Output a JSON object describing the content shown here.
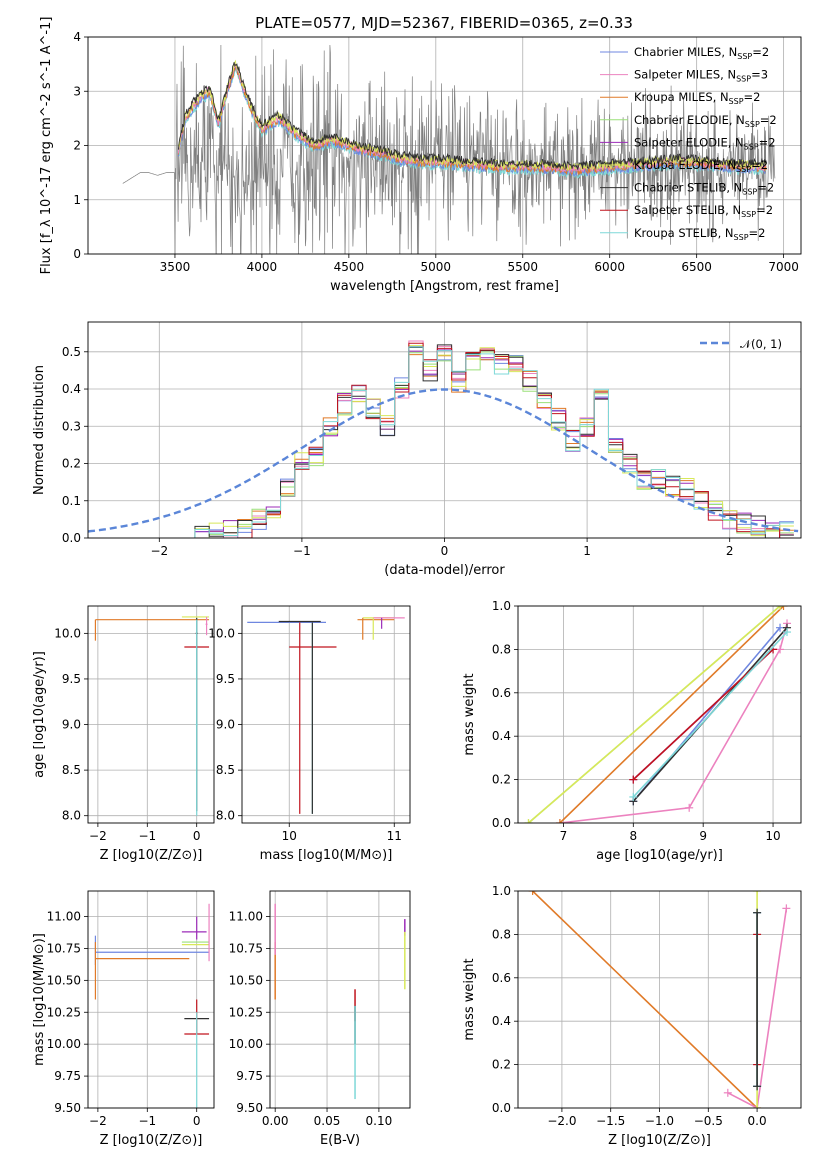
{
  "figure": {
    "title": "PLATE=0577, MJD=52367, FIBERID=0365, z=0.33"
  },
  "colors": {
    "Chabrier MILES": "#6f87e0",
    "Salpeter MILES": "#ec82bf",
    "Kroupa MILES": "#e07a28",
    "Chabrier ELODIE": "#9be07a",
    "Salpeter ELODIE": "#9c2cb8",
    "Kroupa ELODIE": "#d8e85a",
    "Chabrier STELIB": "#303030",
    "Salpeter STELIB": "#c0141e",
    "Kroupa STELIB": "#7ed8d8",
    "data": "#7f7f7f",
    "normal": "#5b86d8"
  },
  "chart_data": [
    {
      "id": "spectrum",
      "type": "line",
      "title": "PLATE=0577, MJD=52367, FIBERID=0365, z=0.33",
      "xlabel": "wavelength [Angstrom, rest frame]",
      "ylabel": "Flux [f_λ 10^-17 erg cm^-2 s^-1 A^-1]",
      "xlim": [
        3000,
        7100
      ],
      "ylim": [
        0,
        4
      ],
      "xticks": [
        3500,
        4000,
        4500,
        5000,
        5500,
        6000,
        6500,
        7000
      ],
      "yticks": [
        0,
        1,
        2,
        3,
        4
      ],
      "legend_position": "top-right",
      "legend": [
        {
          "name": "Chabrier MILES, N_SSP=2",
          "main": "Chabrier MILES, N",
          "sub": "SSP",
          "tail": "=2"
        },
        {
          "name": "Salpeter MILES, N_SSP=3",
          "main": "Salpeter MILES, N",
          "sub": "SSP",
          "tail": "=3"
        },
        {
          "name": "Kroupa MILES, N_SSP=2",
          "main": "Kroupa MILES, N",
          "sub": "SSP",
          "tail": "=2"
        },
        {
          "name": "Chabrier ELODIE, N_SSP=2",
          "main": "Chabrier ELODIE, N",
          "sub": "SSP",
          "tail": "=2"
        },
        {
          "name": "Salpeter ELODIE, N_SSP=2",
          "main": "Salpeter ELODIE, N",
          "sub": "SSP",
          "tail": "=2"
        },
        {
          "name": "Kroupa ELODIE, N_SSP=2",
          "main": "Kroupa ELODIE, N",
          "sub": "SSP",
          "tail": "=2"
        },
        {
          "name": "Chabrier STELIB, N_SSP=2",
          "main": "Chabrier STELIB, N",
          "sub": "SSP",
          "tail": "=2"
        },
        {
          "name": "Salpeter STELIB, N_SSP=2",
          "main": "Salpeter STELIB, N",
          "sub": "SSP",
          "tail": "=2"
        },
        {
          "name": "Kroupa STELIB, N_SSP=2",
          "main": "Kroupa STELIB, N",
          "sub": "SSP",
          "tail": "=2"
        }
      ],
      "data_spectrum": {
        "x": [
          3200,
          3250,
          3300,
          3350,
          3400,
          3450,
          3500,
          3600,
          3700,
          3800,
          3900,
          4000,
          4200,
          4400,
          4600,
          4800,
          5000,
          5200,
          5400,
          5600,
          5800,
          6000,
          6200,
          6400,
          6600,
          6800,
          6950
        ],
        "y": [
          1.3,
          1.4,
          1.5,
          1.5,
          1.45,
          1.5,
          1.5,
          1.6,
          1.7,
          1.5,
          1.3,
          1.6,
          1.8,
          1.8,
          1.75,
          1.7,
          1.75,
          1.7,
          1.6,
          1.55,
          1.6,
          1.6,
          1.6,
          1.6,
          1.65,
          1.6,
          1.5
        ],
        "noisy_from": 3500,
        "noise_range": [
          0,
          4
        ]
      },
      "model_spectrum": {
        "x": [
          3520,
          3560,
          3600,
          3650,
          3700,
          3750,
          3800,
          3850,
          3900,
          3950,
          4000,
          4100,
          4200,
          4300,
          4400,
          4500,
          4600,
          4700,
          4800,
          4900,
          5000,
          5200,
          5400,
          5600,
          5800,
          6000,
          6200,
          6400,
          6600,
          6800,
          6900
        ],
        "y": [
          1.9,
          2.5,
          2.7,
          2.9,
          3.0,
          2.4,
          3.0,
          3.5,
          3.0,
          2.6,
          2.3,
          2.5,
          2.2,
          2.0,
          2.1,
          2.0,
          1.9,
          1.85,
          1.75,
          1.7,
          1.7,
          1.65,
          1.6,
          1.6,
          1.55,
          1.6,
          1.65,
          1.7,
          1.65,
          1.6,
          1.6
        ]
      }
    },
    {
      "id": "residuals",
      "type": "line",
      "xlabel": "(data-model)/error",
      "ylabel": "Normed distribution",
      "xlim": [
        -2.5,
        2.5
      ],
      "ylim": [
        0,
        0.58
      ],
      "xticks": [
        -2,
        -1,
        0,
        1,
        2
      ],
      "yticks": [
        0.0,
        0.1,
        0.2,
        0.3,
        0.4,
        0.5
      ],
      "legend_position": "top-right",
      "normal_label": "𝒩(0, 1)",
      "bin_edges": [
        -1.75,
        -1.65,
        -1.55,
        -1.45,
        -1.35,
        -1.25,
        -1.15,
        -1.05,
        -0.95,
        -0.85,
        -0.75,
        -0.65,
        -0.55,
        -0.45,
        -0.35,
        -0.25,
        -0.15,
        -0.05,
        0.05,
        0.15,
        0.25,
        0.35,
        0.45,
        0.55,
        0.65,
        0.75,
        0.85,
        0.95,
        1.05,
        1.15,
        1.25,
        1.35,
        1.45,
        1.55,
        1.65,
        1.75,
        1.85,
        1.95,
        2.05,
        2.15,
        2.25,
        2.35,
        2.45
      ],
      "hist_values": [
        0.005,
        0.01,
        0.02,
        0.03,
        0.05,
        0.08,
        0.14,
        0.2,
        0.22,
        0.3,
        0.36,
        0.39,
        0.35,
        0.3,
        0.4,
        0.5,
        0.45,
        0.5,
        0.42,
        0.48,
        0.5,
        0.47,
        0.47,
        0.42,
        0.36,
        0.32,
        0.26,
        0.3,
        0.37,
        0.25,
        0.2,
        0.15,
        0.16,
        0.14,
        0.13,
        0.1,
        0.07,
        0.05,
        0.04,
        0.03,
        0.02,
        0.015
      ]
    },
    {
      "id": "age-vs-Z",
      "type": "scatter",
      "xlabel": "Z [log10(Z/Z⊙)]",
      "ylabel": "age [log10(age/yr)]",
      "xlim": [
        -2.2,
        0.35
      ],
      "ylim": [
        7.92,
        10.3
      ],
      "xticks": [
        -2,
        -1,
        0
      ],
      "yticks": [
        8.0,
        8.5,
        9.0,
        9.5,
        10.0
      ],
      "points": [
        {
          "series": "Kroupa MILES",
          "x": -2.0,
          "y": 10.15
        },
        {
          "series": "Chabrier MILES",
          "x": 0.0,
          "y": 10.15
        },
        {
          "series": "Kroupa ELODIE",
          "x": 0.0,
          "y": 10.18
        },
        {
          "series": "Salpeter MILES",
          "x": 0.2,
          "y": 10.15
        },
        {
          "series": "Salpeter STELIB",
          "x": 0.0,
          "y": 9.85
        },
        {
          "series": "Kroupa STELIB",
          "x": 0.0,
          "y": 8.05
        }
      ]
    },
    {
      "id": "age-vs-mass",
      "type": "scatter",
      "xlabel": "mass [log10(M/M⊙)]",
      "ylabel": "",
      "xlim": [
        9.55,
        11.15
      ],
      "ylim": [
        7.92,
        10.3
      ],
      "xticks": [
        10,
        11
      ],
      "yticks": [
        8.0,
        8.5,
        9.0,
        9.5,
        10.0
      ],
      "points": [
        {
          "series": "Chabrier MILES",
          "x": 10.2,
          "y": 10.12
        },
        {
          "series": "Salpeter STELIB",
          "x": 10.22,
          "y": 9.85
        },
        {
          "series": "Kroupa STELIB",
          "x": 10.22,
          "y": 8.05
        },
        {
          "series": "Kroupa ELODIE",
          "x": 10.7,
          "y": 10.17
        },
        {
          "series": "Salpeter MILES",
          "x": 10.85,
          "y": 10.17
        },
        {
          "series": "Kroupa MILES",
          "x": 10.7,
          "y": 10.15
        }
      ]
    },
    {
      "id": "mass-weight-vs-age",
      "type": "line",
      "xlabel": "age [log10(age/yr)]",
      "ylabel": "mass weight",
      "xlim": [
        6.35,
        10.4
      ],
      "ylim": [
        0,
        1.0
      ],
      "xticks": [
        7,
        8,
        9,
        10
      ],
      "yticks": [
        0.0,
        0.2,
        0.4,
        0.6,
        0.8,
        1.0
      ],
      "series": [
        {
          "name": "Chabrier MILES",
          "x": [
            8.0,
            10.1
          ],
          "y": [
            0.1,
            0.9
          ]
        },
        {
          "name": "Salpeter MILES",
          "x": [
            6.95,
            8.8,
            10.1,
            10.2
          ],
          "y": [
            0.0,
            0.07,
            0.8,
            0.92
          ]
        },
        {
          "name": "Kroupa MILES",
          "x": [
            6.95,
            10.15
          ],
          "y": [
            0.0,
            1.0
          ]
        },
        {
          "name": "Chabrier ELODIE",
          "x": [
            6.5,
            10.1
          ],
          "y": [
            0.0,
            1.0
          ]
        },
        {
          "name": "Salpeter ELODIE",
          "x": [
            8.0,
            10.0
          ],
          "y": [
            0.2,
            0.8
          ]
        },
        {
          "name": "Kroupa ELODIE",
          "x": [
            6.5,
            10.1
          ],
          "y": [
            0.0,
            1.0
          ]
        },
        {
          "name": "Chabrier STELIB",
          "x": [
            8.0,
            10.2
          ],
          "y": [
            0.1,
            0.9
          ]
        },
        {
          "name": "Salpeter STELIB",
          "x": [
            8.0,
            10.0
          ],
          "y": [
            0.2,
            0.8
          ]
        },
        {
          "name": "Kroupa STELIB",
          "x": [
            8.0,
            10.2
          ],
          "y": [
            0.12,
            0.88
          ]
        }
      ]
    },
    {
      "id": "mass-vs-Z",
      "type": "scatter",
      "xlabel": "Z [log10(Z/Z⊙)]",
      "ylabel": "mass [log10(M/M⊙)]",
      "xlim": [
        -2.2,
        0.35
      ],
      "ylim": [
        9.5,
        11.2
      ],
      "xticks": [
        -2,
        -1,
        0
      ],
      "yticks": [
        9.5,
        9.75,
        10.0,
        10.25,
        10.5,
        10.75,
        11.0
      ],
      "points": [
        {
          "series": "Chabrier MILES",
          "x": -2.0,
          "y": 10.72
        },
        {
          "series": "Kroupa MILES",
          "x": -2.0,
          "y": 10.67
        },
        {
          "series": "Chabrier ELODIE",
          "x": 0.0,
          "y": 10.8
        },
        {
          "series": "Salpeter ELODIE",
          "x": 0.0,
          "y": 10.88
        },
        {
          "series": "Salpeter MILES",
          "x": 0.2,
          "y": 10.75
        },
        {
          "series": "Chabrier STELIB",
          "x": 0.0,
          "y": 10.2
        },
        {
          "series": "Salpeter STELIB",
          "x": 0.0,
          "y": 10.08
        },
        {
          "series": "Kroupa STELIB",
          "x": 0.0,
          "y": 9.85
        }
      ]
    },
    {
      "id": "mass-vs-EBV",
      "type": "scatter",
      "xlabel": "E(B-V)",
      "ylabel": "",
      "xlim": [
        -0.005,
        0.13
      ],
      "ylim": [
        9.5,
        11.2
      ],
      "xticks": [
        0.0,
        0.05,
        0.1
      ],
      "yticks": [
        9.5,
        9.75,
        10.0,
        10.25,
        10.5,
        10.75,
        11.0
      ],
      "points": [
        {
          "series": "Kroupa MILES",
          "x": 0.0,
          "y": 10.6
        },
        {
          "series": "Salpeter MILES",
          "x": 0.0,
          "y": 10.9
        },
        {
          "series": "Salpeter STELIB",
          "x": 0.077,
          "y": 10.3
        },
        {
          "series": "Kroupa STELIB",
          "x": 0.077,
          "y": 9.8
        },
        {
          "series": "Salpeter ELODIE",
          "x": 0.125,
          "y": 10.95
        },
        {
          "series": "Kroupa ELODIE",
          "x": 0.125,
          "y": 10.65
        }
      ]
    },
    {
      "id": "mass-weight-vs-Z",
      "type": "line",
      "xlabel": "Z [log10(Z/Z⊙)]",
      "ylabel": "mass weight",
      "xlim": [
        -2.45,
        0.45
      ],
      "ylim": [
        0,
        1.0
      ],
      "xticks": [
        -2.0,
        -1.5,
        -1.0,
        -0.5,
        0.0
      ],
      "yticks": [
        0.0,
        0.2,
        0.4,
        0.6,
        0.8,
        1.0
      ],
      "series": [
        {
          "name": "Kroupa MILES",
          "x": [
            -2.3,
            0.0
          ],
          "y": [
            1.0,
            0.0
          ]
        },
        {
          "name": "Salpeter MILES",
          "x": [
            -0.3,
            0.0,
            0.3
          ],
          "y": [
            0.07,
            0.0,
            0.92
          ]
        },
        {
          "name": "Chabrier MILES",
          "x": [
            0.0,
            0.0
          ],
          "y": [
            0.1,
            0.9
          ]
        },
        {
          "name": "Kroupa ELODIE",
          "x": [
            0.0,
            0.0
          ],
          "y": [
            0.0,
            1.0
          ]
        },
        {
          "name": "Salpeter STELIB",
          "x": [
            0.0,
            0.0
          ],
          "y": [
            0.2,
            0.8
          ]
        },
        {
          "name": "Kroupa STELIB",
          "x": [
            0.0,
            0.0
          ],
          "y": [
            0.1,
            0.9
          ]
        },
        {
          "name": "Chabrier STELIB",
          "x": [
            0.0,
            0.0
          ],
          "y": [
            0.1,
            0.9
          ]
        }
      ]
    }
  ]
}
